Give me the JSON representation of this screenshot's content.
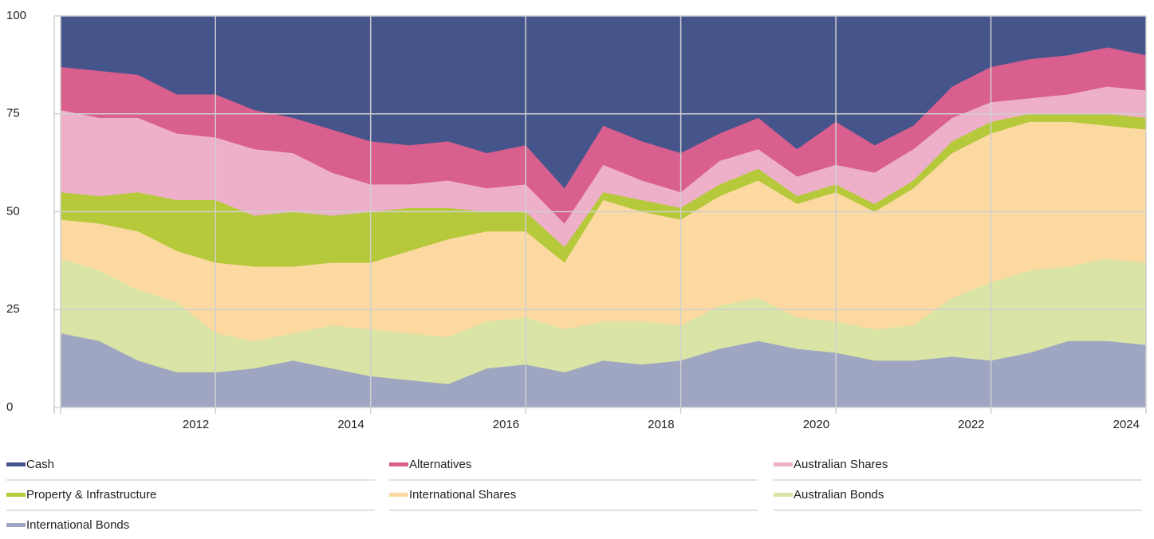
{
  "chart_data": {
    "type": "stacked-area",
    "x": [
      2010.0,
      2010.5,
      2011.0,
      2011.5,
      2012.0,
      2012.5,
      2013.0,
      2013.5,
      2014.0,
      2014.5,
      2015.0,
      2015.5,
      2016.0,
      2016.5,
      2017.0,
      2017.5,
      2018.0,
      2018.5,
      2019.0,
      2019.5,
      2020.0,
      2020.5,
      2021.0,
      2021.5,
      2022.0,
      2022.5,
      2023.0,
      2023.5,
      2024.0
    ],
    "xlim": [
      2009.92,
      2024.0
    ],
    "xticks": [
      2012,
      2014,
      2016,
      2018,
      2020,
      2022,
      2024
    ],
    "ylim": [
      0,
      100
    ],
    "yticks": [
      0,
      25,
      50,
      75,
      100
    ],
    "grid": true,
    "series": [
      {
        "name": "Cash",
        "color": "#45548a",
        "values": [
          13,
          14,
          15,
          20,
          20,
          24,
          26,
          29,
          32,
          33,
          32,
          35,
          33,
          44,
          28,
          32,
          35,
          30,
          26,
          34,
          27,
          33,
          28,
          18,
          13,
          11,
          10,
          8,
          10
        ]
      },
      {
        "name": "Alternatives",
        "color": "#d95f8e",
        "values": [
          11,
          12,
          11,
          10,
          11,
          10,
          9,
          11,
          11,
          10,
          10,
          9,
          10,
          9,
          10,
          10,
          10,
          7,
          8,
          7,
          11,
          7,
          6,
          8,
          9,
          10,
          10,
          10,
          9
        ]
      },
      {
        "name": "Australian Shares",
        "color": "#eeb0c8",
        "values": [
          21,
          20,
          19,
          17,
          16,
          17,
          15,
          11,
          7,
          6,
          7,
          6,
          7,
          6,
          7,
          5,
          4,
          6,
          5,
          5,
          5,
          8,
          8,
          6,
          5,
          4,
          5,
          7,
          7
        ]
      },
      {
        "name": "Property & Infrastructure",
        "color": "#b5c93a",
        "values": [
          7,
          7,
          10,
          13,
          16,
          13,
          14,
          12,
          13,
          11,
          8,
          5,
          5,
          4,
          2,
          3,
          3,
          3,
          3,
          2,
          2,
          2,
          2,
          3,
          3,
          2,
          2,
          3,
          3
        ]
      },
      {
        "name": "International Shares",
        "color": "#fdd9a2",
        "values": [
          10,
          12,
          15,
          13,
          18,
          19,
          17,
          16,
          17,
          21,
          25,
          23,
          22,
          17,
          31,
          28,
          27,
          28,
          30,
          29,
          33,
          30,
          35,
          37,
          38,
          38,
          37,
          34,
          34
        ]
      },
      {
        "name": "Australian Bonds",
        "color": "#d9e4a5",
        "values": [
          19,
          18,
          18,
          18,
          10,
          7,
          7,
          11,
          12,
          12,
          12,
          12,
          12,
          11,
          10,
          11,
          9,
          11,
          11,
          8,
          8,
          8,
          9,
          15,
          20,
          21,
          19,
          21,
          21
        ]
      },
      {
        "name": "International Bonds",
        "color": "#9fa6c1",
        "values": [
          19,
          17,
          12,
          9,
          9,
          10,
          12,
          10,
          8,
          7,
          6,
          10,
          11,
          9,
          12,
          11,
          12,
          15,
          17,
          15,
          14,
          12,
          12,
          13,
          12,
          14,
          17,
          17,
          16
        ]
      }
    ]
  }
}
